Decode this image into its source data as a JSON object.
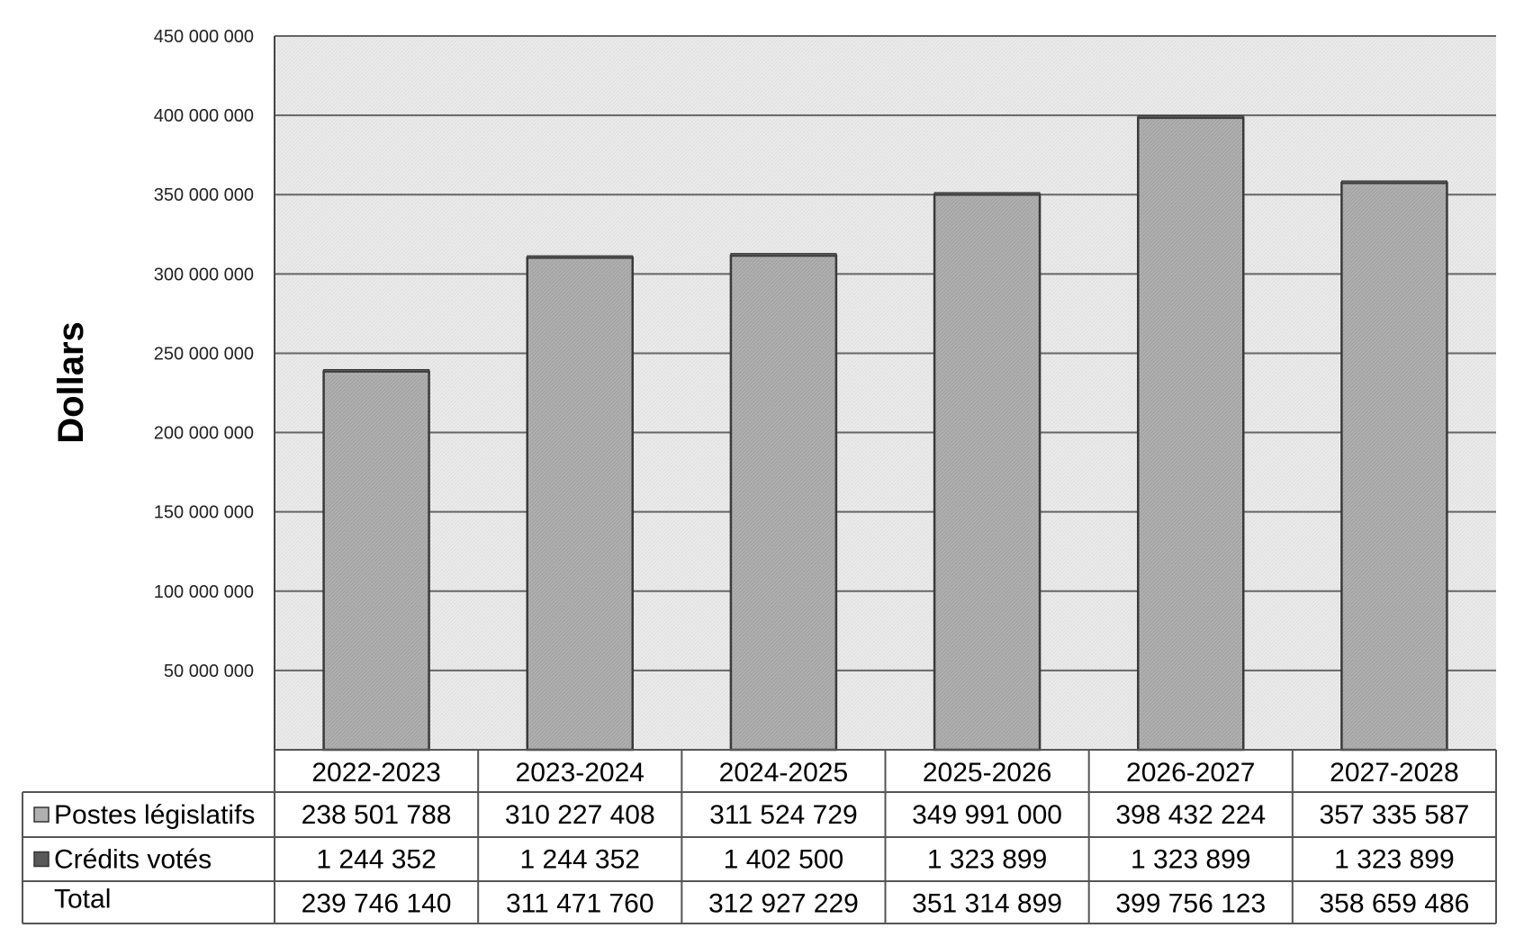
{
  "chart_data": {
    "type": "bar",
    "ylabel": "Dollars",
    "ylim": [
      0,
      450000000
    ],
    "ytick_values": [
      50000000,
      100000000,
      150000000,
      200000000,
      250000000,
      300000000,
      350000000,
      400000000,
      450000000
    ],
    "ytick_labels": [
      "50 000 000",
      "100 000 000",
      "150 000 000",
      "200 000 000",
      "250 000 000",
      "300 000 000",
      "350 000 000",
      "400 000 000",
      "450 000 000"
    ],
    "grid": true,
    "categories": [
      "2022-2023",
      "2023-2024",
      "2024-2025",
      "2025-2026",
      "2026-2027",
      "2027-2028"
    ],
    "series": [
      {
        "name": "Postes législatifs",
        "color": "#a9a9a9",
        "values": [
          238501788,
          310227408,
          311524729,
          349991000,
          398432224,
          357335587
        ],
        "labels": [
          "238 501 788",
          "310 227 408",
          "311 524 729",
          "349 991 000",
          "398 432 224",
          "357 335 587"
        ]
      },
      {
        "name": "Crédits votés",
        "color": "#595959",
        "values": [
          1244352,
          1244352,
          1402500,
          1323899,
          1323899,
          1323899
        ],
        "labels": [
          "1 244 352",
          "1 244 352",
          "1 402 500",
          "1 323 899",
          "1 323 899",
          "1 323 899"
        ]
      }
    ],
    "total": {
      "name": "Total",
      "values": [
        239746140,
        311471760,
        312927229,
        351314899,
        399756123,
        358659486
      ],
      "labels": [
        "239 746 140",
        "311 471 760",
        "312 927 229",
        "351 314 899",
        "399 756 123",
        "358 659 486"
      ]
    },
    "colors": {
      "plot_background": "#e9e9e9",
      "gridline": "#666666",
      "bar_stroke": "#3a3a3a"
    }
  }
}
